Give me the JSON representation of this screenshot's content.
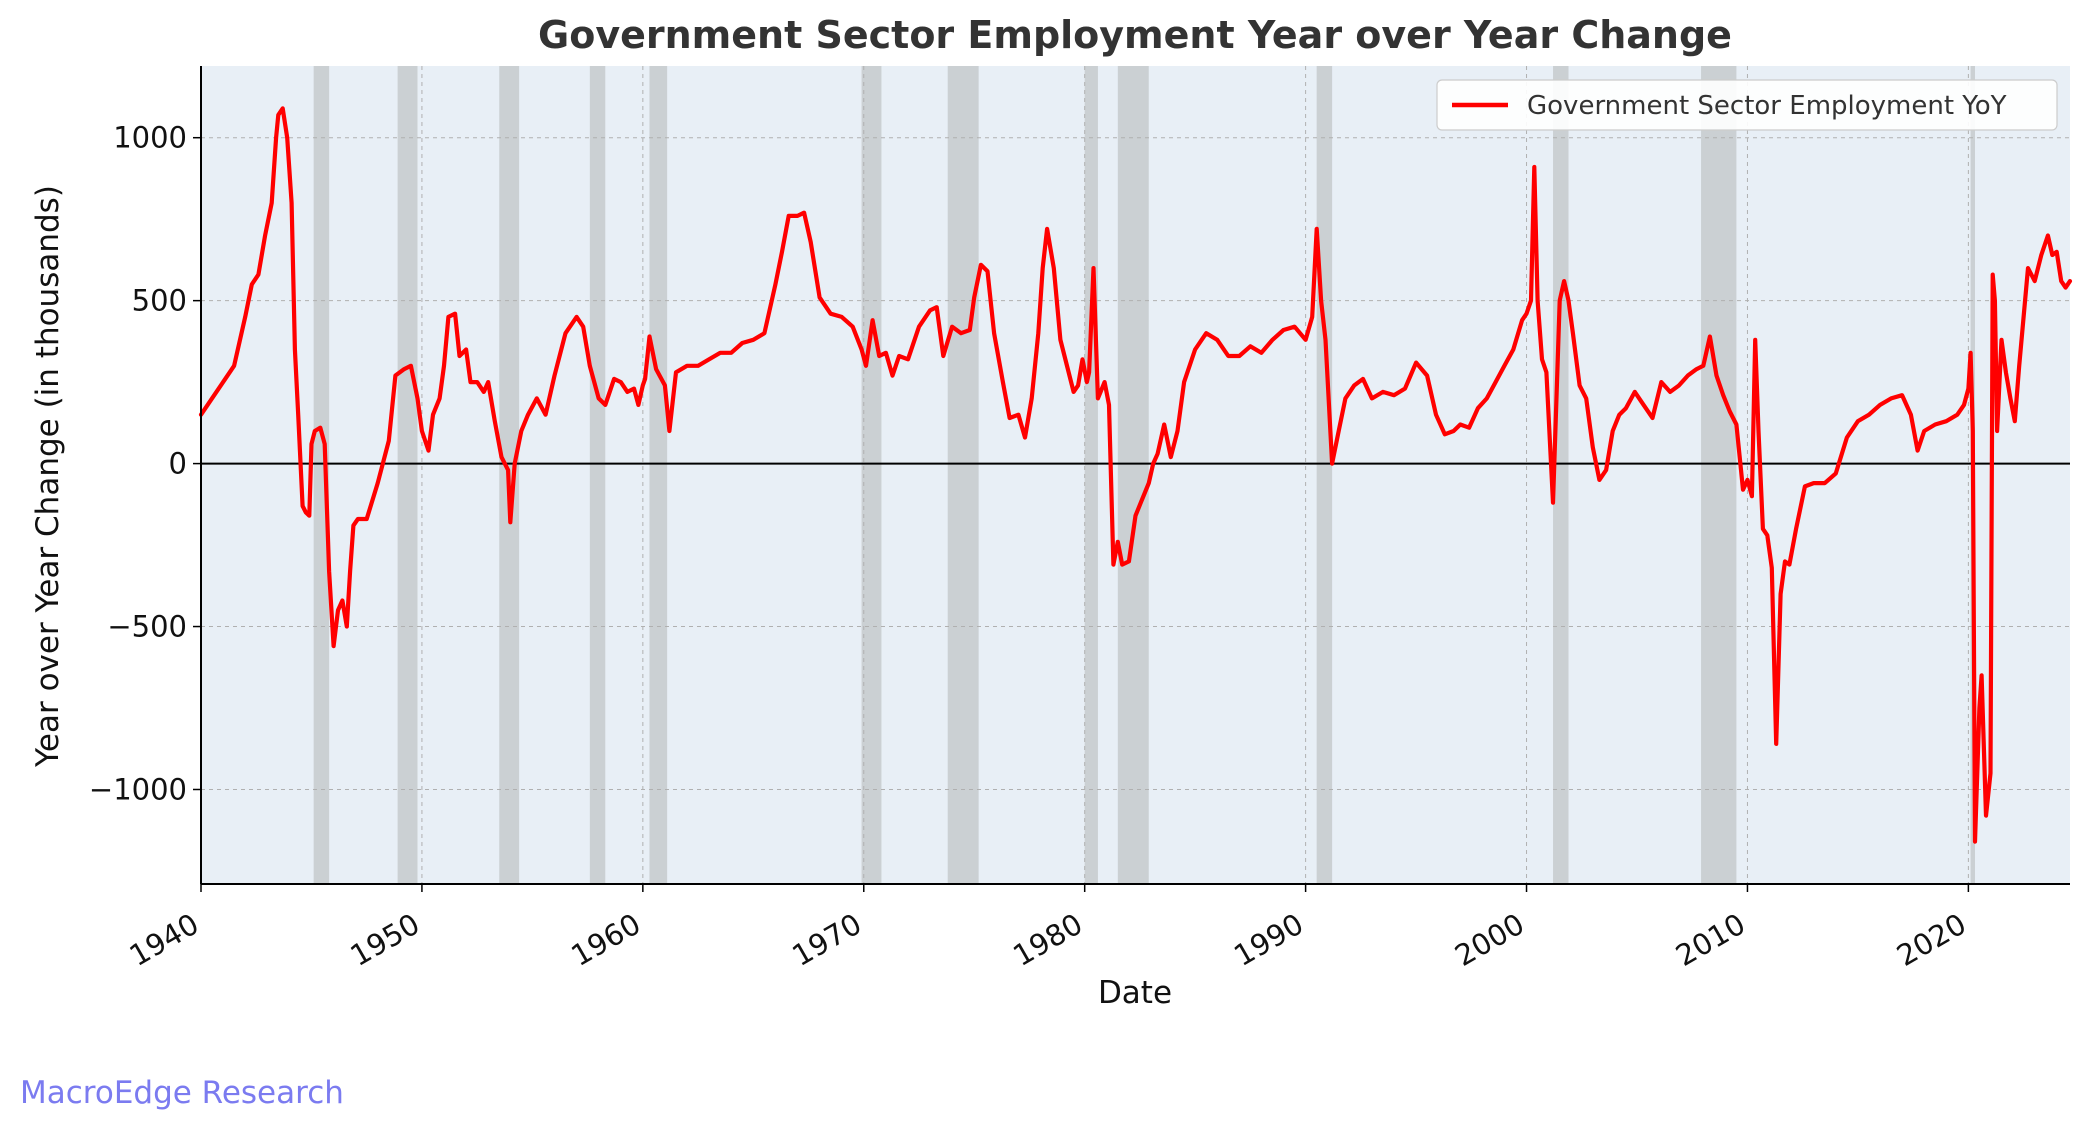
{
  "chart_data": {
    "type": "line",
    "title": "Government Sector Employment Year over Year Change",
    "xlabel": "Date",
    "ylabel": "Year over Year Change (in thousands)",
    "xlim": [
      1940.0,
      2024.6
    ],
    "ylim": [
      -1290,
      1220
    ],
    "x_ticks": [
      1940,
      1950,
      1960,
      1970,
      1980,
      1990,
      2000,
      2010,
      2020
    ],
    "y_ticks": [
      -1000,
      -500,
      0,
      500,
      1000
    ],
    "y_tick_labels": [
      "−1000",
      "−500",
      "0",
      "500",
      "1000"
    ],
    "grid": true,
    "zero_line": true,
    "legend": {
      "position": "top-right",
      "entries": [
        "Government Sector Employment YoY"
      ]
    },
    "colors": {
      "series": "#ff0000",
      "plot_background": "#e8eff6",
      "recession_shading": "#c9cdd1"
    },
    "recessions": [
      [
        1945.1,
        1945.8
      ],
      [
        1948.9,
        1949.8
      ],
      [
        1953.5,
        1954.4
      ],
      [
        1957.6,
        1958.3
      ],
      [
        1960.3,
        1961.1
      ],
      [
        1969.9,
        1970.8
      ],
      [
        1973.8,
        1975.2
      ],
      [
        1980.0,
        1980.6
      ],
      [
        1981.5,
        1982.9
      ],
      [
        1990.5,
        1991.2
      ],
      [
        2001.2,
        2001.9
      ],
      [
        2007.9,
        2009.5
      ],
      [
        2020.1,
        2020.3
      ]
    ],
    "series": [
      {
        "name": "Government Sector Employment YoY",
        "x": [
          1940.0,
          1940.5,
          1941.0,
          1941.5,
          1942.0,
          1942.3,
          1942.6,
          1942.9,
          1943.2,
          1943.4,
          1943.5,
          1943.7,
          1943.9,
          1944.1,
          1944.25,
          1944.4,
          1944.6,
          1944.75,
          1944.9,
          1945.0,
          1945.15,
          1945.4,
          1945.6,
          1945.8,
          1946.0,
          1946.2,
          1946.4,
          1946.6,
          1946.75,
          1946.9,
          1947.1,
          1947.5,
          1948.0,
          1948.5,
          1948.8,
          1949.2,
          1949.5,
          1949.8,
          1950.0,
          1950.3,
          1950.5,
          1950.8,
          1951.0,
          1951.2,
          1951.5,
          1951.7,
          1952.0,
          1952.2,
          1952.5,
          1952.8,
          1953.0,
          1953.3,
          1953.6,
          1953.9,
          1954.0,
          1954.2,
          1954.5,
          1954.8,
          1955.2,
          1955.6,
          1956.0,
          1956.5,
          1957.0,
          1957.3,
          1957.6,
          1958.0,
          1958.3,
          1958.7,
          1959.0,
          1959.3,
          1959.6,
          1959.8,
          1960.0,
          1960.1,
          1960.3,
          1960.6,
          1961.0,
          1961.2,
          1961.5,
          1962.0,
          1962.5,
          1963.0,
          1963.5,
          1964.0,
          1964.5,
          1965.0,
          1965.5,
          1966.0,
          1966.3,
          1966.6,
          1967.0,
          1967.3,
          1967.6,
          1968.0,
          1968.5,
          1969.0,
          1969.5,
          1969.9,
          1970.1,
          1970.4,
          1970.7,
          1971.0,
          1971.3,
          1971.6,
          1972.0,
          1972.5,
          1973.0,
          1973.3,
          1973.6,
          1974.0,
          1974.4,
          1974.8,
          1975.0,
          1975.3,
          1975.6,
          1975.9,
          1976.3,
          1976.6,
          1977.0,
          1977.3,
          1977.6,
          1977.9,
          1978.1,
          1978.3,
          1978.6,
          1978.9,
          1979.2,
          1979.5,
          1979.7,
          1979.9,
          1980.1,
          1980.2,
          1980.4,
          1980.6,
          1980.9,
          1981.1,
          1981.3,
          1981.5,
          1981.7,
          1982.0,
          1982.3,
          1982.6,
          1982.9,
          1983.1,
          1983.3,
          1983.6,
          1983.9,
          1984.2,
          1984.5,
          1985.0,
          1985.5,
          1986.0,
          1986.5,
          1987.0,
          1987.5,
          1988.0,
          1988.5,
          1989.0,
          1989.5,
          1990.0,
          1990.3,
          1990.5,
          1990.7,
          1990.9,
          1991.2,
          1991.5,
          1991.8,
          1992.2,
          1992.6,
          1993.0,
          1993.5,
          1994.0,
          1994.5,
          1995.0,
          1995.5,
          1995.9,
          1996.3,
          1996.7,
          1997.0,
          1997.4,
          1997.8,
          1998.2,
          1998.6,
          1999.0,
          1999.4,
          1999.8,
          2000.0,
          2000.2,
          2000.35,
          2000.5,
          2000.7,
          2000.9,
          2001.2,
          2001.5,
          2001.7,
          2001.9,
          2002.1,
          2002.4,
          2002.7,
          2003.0,
          2003.3,
          2003.6,
          2003.9,
          2004.2,
          2004.5,
          2004.9,
          2005.3,
          2005.7,
          2006.1,
          2006.5,
          2006.9,
          2007.3,
          2007.7,
          2008.0,
          2008.3,
          2008.6,
          2008.9,
          2009.2,
          2009.5,
          2009.8,
          2010.0,
          2010.2,
          2010.35,
          2010.5,
          2010.7,
          2010.9,
          2011.1,
          2011.3,
          2011.5,
          2011.7,
          2011.9,
          2012.2,
          2012.6,
          2013.0,
          2013.5,
          2014.0,
          2014.5,
          2015.0,
          2015.5,
          2016.0,
          2016.5,
          2017.0,
          2017.4,
          2017.7,
          2018.0,
          2018.5,
          2019.0,
          2019.5,
          2019.8,
          2020.0,
          2020.1,
          2020.2,
          2020.3,
          2020.5,
          2020.6,
          2020.8,
          2021.0,
          2021.1,
          2021.2,
          2021.3,
          2021.5,
          2021.7,
          2021.9,
          2022.1,
          2022.3,
          2022.5,
          2022.7,
          2023.0,
          2023.3,
          2023.6,
          2023.8,
          2024.0,
          2024.2,
          2024.4,
          2024.6
        ],
        "values": [
          150,
          200,
          250,
          300,
          450,
          550,
          580,
          700,
          800,
          1000,
          1070,
          1090,
          1000,
          800,
          350,
          150,
          -130,
          -150,
          -160,
          60,
          100,
          110,
          60,
          -330,
          -560,
          -450,
          -420,
          -500,
          -330,
          -190,
          -170,
          -170,
          -60,
          70,
          270,
          290,
          300,
          200,
          100,
          40,
          150,
          200,
          300,
          450,
          460,
          330,
          350,
          250,
          250,
          220,
          250,
          130,
          20,
          -20,
          -180,
          0,
          100,
          150,
          200,
          150,
          270,
          400,
          450,
          420,
          300,
          200,
          180,
          260,
          250,
          220,
          230,
          180,
          240,
          260,
          390,
          290,
          240,
          100,
          280,
          300,
          300,
          320,
          340,
          340,
          370,
          380,
          400,
          550,
          650,
          760,
          760,
          770,
          680,
          510,
          460,
          450,
          420,
          350,
          300,
          440,
          330,
          340,
          270,
          330,
          320,
          420,
          470,
          480,
          330,
          420,
          400,
          410,
          510,
          610,
          590,
          400,
          250,
          140,
          150,
          80,
          200,
          400,
          600,
          720,
          600,
          380,
          300,
          220,
          240,
          320,
          250,
          280,
          600,
          200,
          250,
          180,
          -310,
          -240,
          -310,
          -300,
          -160,
          -110,
          -60,
          0,
          30,
          120,
          20,
          100,
          250,
          350,
          400,
          380,
          330,
          330,
          360,
          340,
          380,
          410,
          420,
          380,
          450,
          720,
          500,
          380,
          0,
          100,
          200,
          240,
          260,
          200,
          220,
          210,
          230,
          310,
          270,
          150,
          90,
          100,
          120,
          110,
          170,
          200,
          250,
          300,
          350,
          440,
          460,
          500,
          910,
          500,
          320,
          280,
          -120,
          500,
          560,
          500,
          400,
          240,
          200,
          50,
          -50,
          -20,
          100,
          150,
          170,
          220,
          180,
          140,
          250,
          220,
          240,
          270,
          290,
          300,
          390,
          270,
          210,
          160,
          120,
          -80,
          -50,
          -100,
          380,
          100,
          -200,
          -220,
          -320,
          -860,
          -400,
          -300,
          -310,
          -200,
          -70,
          -60,
          -60,
          -30,
          80,
          130,
          150,
          180,
          200,
          210,
          150,
          40,
          100,
          120,
          130,
          150,
          180,
          230,
          340,
          100,
          -1160,
          -750,
          -650,
          -1080,
          -950,
          580,
          500,
          100,
          380,
          280,
          200,
          130,
          300,
          450,
          600,
          560,
          640,
          700,
          640,
          650,
          560,
          540,
          560
        ]
      }
    ]
  },
  "watermark": "MacroEdge Research"
}
